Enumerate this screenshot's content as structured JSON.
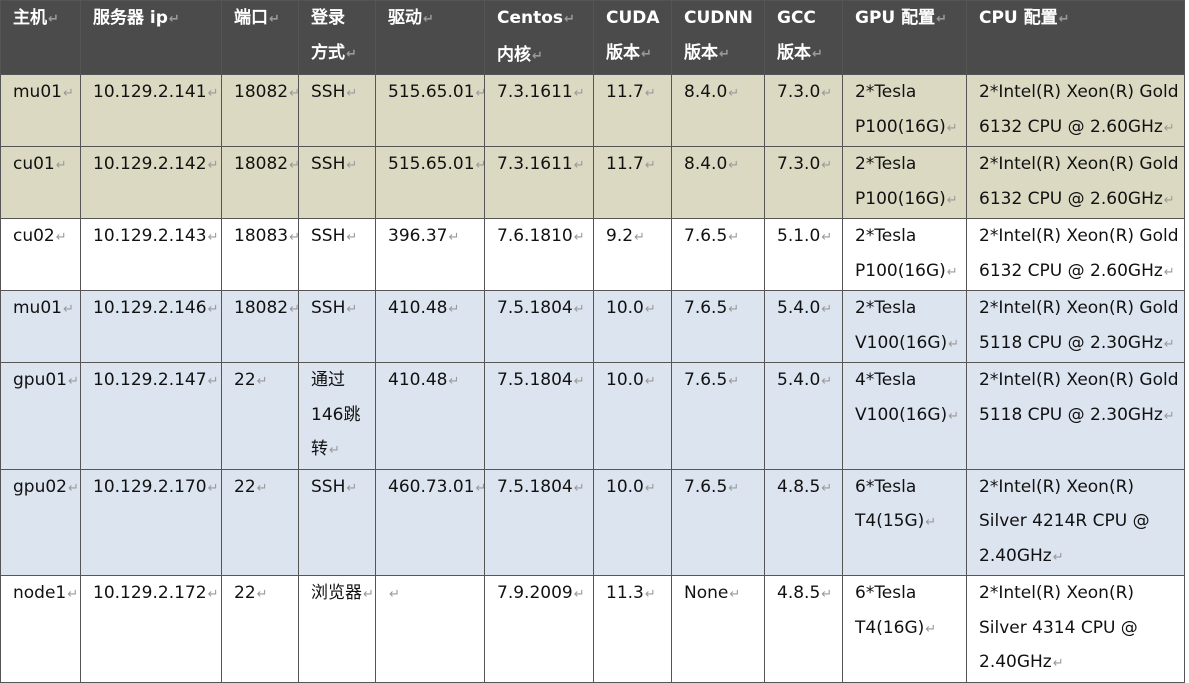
{
  "headers": [
    "主机",
    "服务器 ip",
    "端口",
    "登录方式",
    "驱动",
    "Centos内核",
    "CUDA版本",
    "CUDNN版本",
    "GCC版本",
    "GPU 配置",
    "CPU 配置"
  ],
  "header_lines": {
    "login": [
      "登录",
      "方式"
    ],
    "kernel": [
      "Centos",
      "内核"
    ],
    "cuda": [
      "CUDA",
      "版本"
    ],
    "cudnn": [
      "CUDNN",
      "版本"
    ],
    "gcc": [
      "GCC",
      "版本"
    ]
  },
  "rows": [
    {
      "host": "mu01",
      "ip": "10.129.2.141",
      "port": "18082",
      "login": "SSH",
      "driver": "515.65.01",
      "kernel": "7.3.1611",
      "cuda": "11.7",
      "cudnn": "8.4.0",
      "gcc": "7.3.0",
      "gpu": "2*Tesla P100(16G)",
      "cpu": "2*Intel(R) Xeon(R) Gold 6132 CPU @ 2.60GHz"
    },
    {
      "host": "cu01",
      "ip": "10.129.2.142",
      "port": "18082",
      "login": "SSH",
      "driver": "515.65.01",
      "kernel": "7.3.1611",
      "cuda": "11.7",
      "cudnn": "8.4.0",
      "gcc": "7.3.0",
      "gpu": "2*Tesla P100(16G)",
      "cpu": "2*Intel(R) Xeon(R) Gold 6132 CPU @ 2.60GHz"
    },
    {
      "host": "cu02",
      "ip": "10.129.2.143",
      "port": "18083",
      "login": "SSH",
      "driver": "396.37",
      "kernel": "7.6.1810",
      "cuda": "9.2",
      "cudnn": "7.6.5",
      "gcc": "5.1.0",
      "gpu": "2*Tesla P100(16G)",
      "cpu": "2*Intel(R) Xeon(R) Gold 6132 CPU @ 2.60GHz"
    },
    {
      "host": "mu01",
      "ip": "10.129.2.146",
      "port": "18082",
      "login": "SSH",
      "driver": "410.48",
      "kernel": "7.5.1804",
      "cuda": "10.0",
      "cudnn": "7.6.5",
      "gcc": "5.4.0",
      "gpu": "2*Tesla V100(16G)",
      "cpu": "2*Intel(R) Xeon(R) Gold 5118 CPU @ 2.30GHz"
    },
    {
      "host": "gpu01",
      "ip": "10.129.2.147",
      "port": "22",
      "login": "通过146跳转",
      "driver": "410.48",
      "kernel": "7.5.1804",
      "cuda": "10.0",
      "cudnn": "7.6.5",
      "gcc": "5.4.0",
      "gpu": "4*Tesla V100(16G)",
      "cpu": "2*Intel(R) Xeon(R) Gold 5118 CPU @ 2.30GHz"
    },
    {
      "host": "gpu02",
      "ip": "10.129.2.170",
      "port": "22",
      "login": "SSH",
      "driver": "460.73.01",
      "kernel": "7.5.1804",
      "cuda": "10.0",
      "cudnn": "7.6.5",
      "gcc": "4.8.5",
      "gpu": "6*Tesla T4(15G)",
      "cpu": "2*Intel(R) Xeon(R) Silver 4214R CPU @ 2.40GHz"
    },
    {
      "host": "node1",
      "ip": "10.129.2.172",
      "port": "22",
      "login": "浏览器",
      "driver": "",
      "kernel": "7.9.2009",
      "cuda": "11.3",
      "cudnn": "None",
      "gcc": "4.8.5",
      "gpu": "6*Tesla T4(16G)",
      "cpu": "2*Intel(R) Xeon(R) Silver 4314 CPU @ 2.40GHz"
    }
  ],
  "paragraph_mark": "↵",
  "colors": {
    "header_bg": "#4b4b4b",
    "tan_row": "#dcd9c3",
    "blue_row": "#dbe4ef",
    "white_row": "#ffffff"
  }
}
